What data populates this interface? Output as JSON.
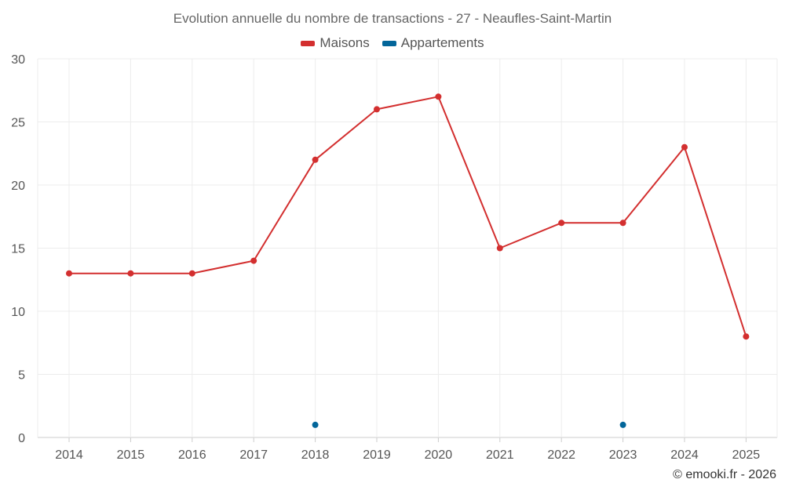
{
  "title": "Evolution annuelle du nombre de transactions - 27 - Neaufles-Saint-Martin",
  "footer": "© emooki.fr - 2026",
  "colors": {
    "Maisons": "#d32f2f",
    "Appartements": "#03669a",
    "grid": "#ececec",
    "axis_text": "#555555"
  },
  "chart_data": {
    "type": "line",
    "title": "Evolution annuelle du nombre de transactions - 27 - Neaufles-Saint-Martin",
    "xlabel": "",
    "ylabel": "",
    "categories": [
      "2014",
      "2015",
      "2016",
      "2017",
      "2018",
      "2019",
      "2020",
      "2021",
      "2022",
      "2023",
      "2024",
      "2025"
    ],
    "yticks": [
      "0",
      "5",
      "10",
      "15",
      "20",
      "25",
      "30"
    ],
    "ylim": [
      0,
      30
    ],
    "grid": true,
    "legend": "top-center",
    "series": [
      {
        "name": "Maisons",
        "values": [
          13,
          13,
          13,
          14,
          22,
          26,
          27,
          15,
          17,
          17,
          23,
          8
        ]
      },
      {
        "name": "Appartements",
        "values": [
          null,
          null,
          null,
          null,
          1,
          null,
          null,
          null,
          null,
          1,
          null,
          null
        ]
      }
    ]
  }
}
